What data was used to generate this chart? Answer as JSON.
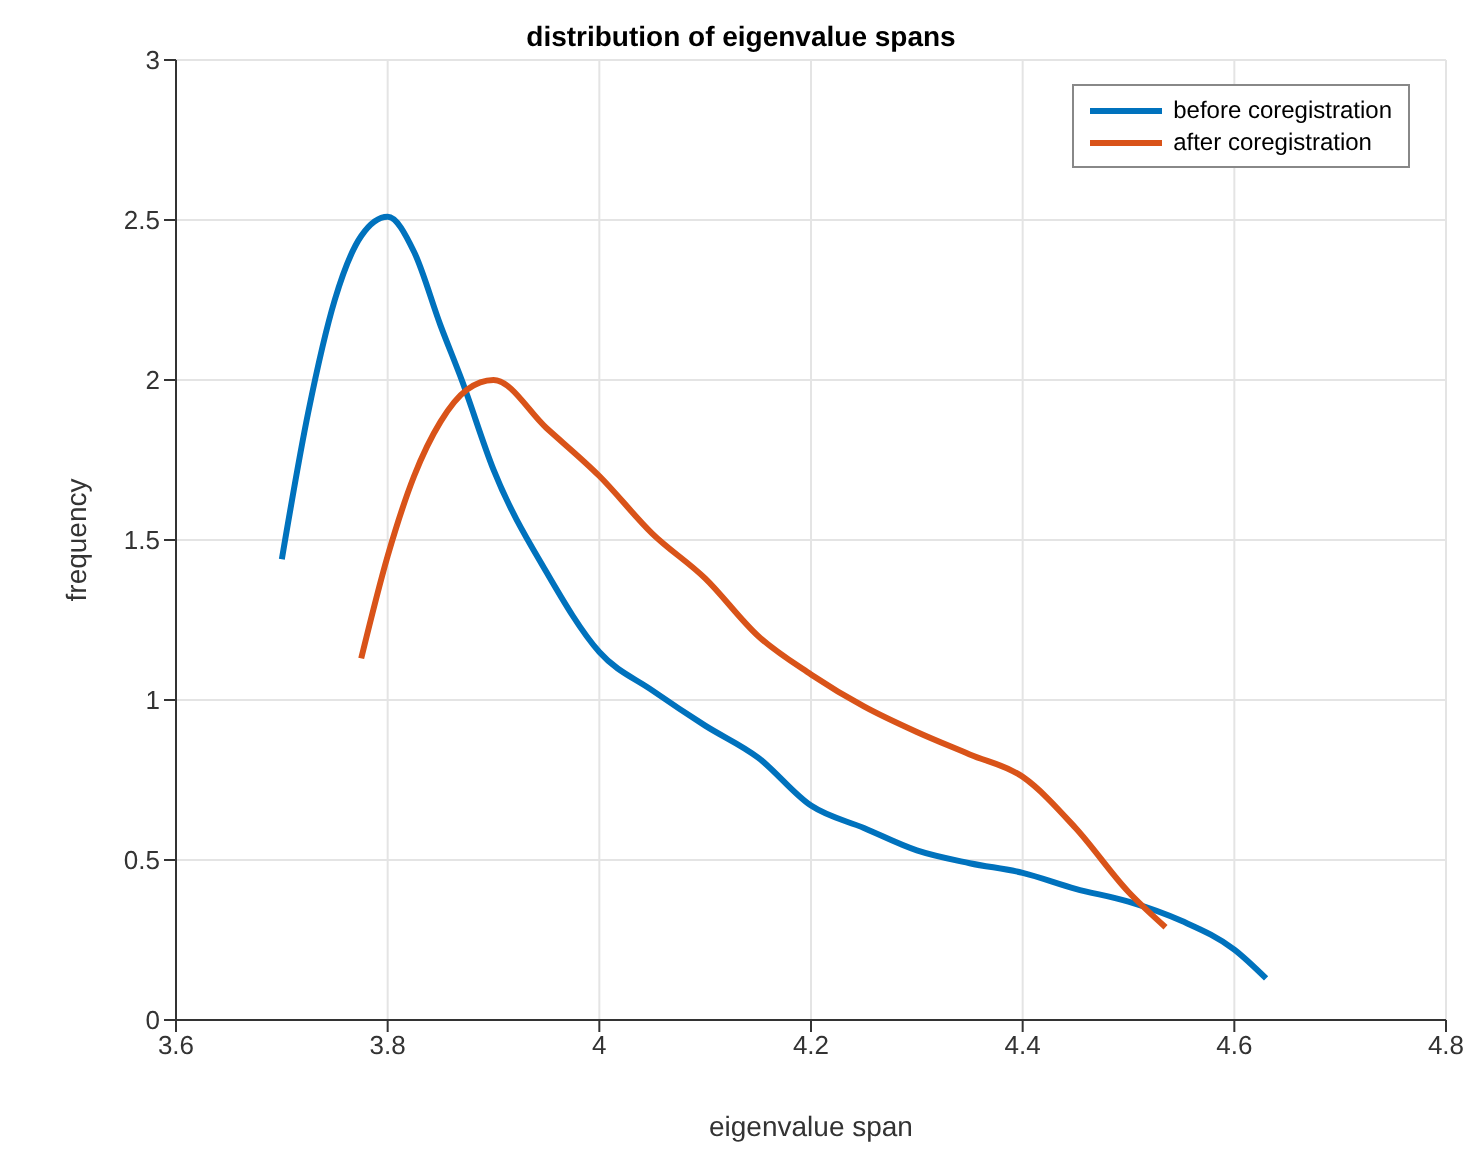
{
  "chart_data": {
    "type": "line",
    "title": "distribution of eigenvalue spans",
    "xlabel": "eigenvalue span",
    "ylabel": "frequency",
    "xlim": [
      3.6,
      4.8
    ],
    "xticks": [
      3.6,
      3.8,
      4,
      4.2,
      4.4,
      4.6,
      4.8
    ],
    "ylim": [
      0,
      3
    ],
    "yticks": [
      0,
      0.5,
      1,
      1.5,
      2,
      2.5,
      3
    ],
    "grid": true,
    "legend": "top right",
    "marker": "none",
    "line_style": "solid",
    "series": [
      {
        "name": "before coregistration",
        "color": "#0072bd",
        "x": [
          3.7,
          3.725,
          3.75,
          3.775,
          3.8,
          3.825,
          3.85,
          3.87,
          3.9,
          3.95,
          4,
          4.05,
          4.1,
          4.15,
          4.2,
          4.25,
          4.3,
          4.35,
          4.4,
          4.45,
          4.5,
          4.55,
          4.6,
          4.63
        ],
        "values": [
          1.44,
          1.9,
          2.25,
          2.45,
          2.51,
          2.4,
          2.17,
          2.0,
          1.72,
          1.4,
          1.15,
          1.03,
          0.92,
          0.82,
          0.67,
          0.6,
          0.53,
          0.49,
          0.46,
          0.41,
          0.37,
          0.31,
          0.22,
          0.13
        ]
      },
      {
        "name": "after coregistration",
        "color": "#d95319",
        "x": [
          3.775,
          3.8,
          3.825,
          3.85,
          3.875,
          3.9,
          3.95,
          4,
          4.05,
          4.1,
          4.15,
          4.2,
          4.25,
          4.3,
          4.35,
          4.4,
          4.45,
          4.5,
          4.535
        ],
        "values": [
          1.13,
          1.45,
          1.7,
          1.87,
          1.97,
          2.0,
          1.85,
          1.7,
          1.52,
          1.38,
          1.2,
          1.08,
          0.98,
          0.9,
          0.83,
          0.76,
          0.6,
          0.4,
          0.29
        ]
      }
    ]
  }
}
